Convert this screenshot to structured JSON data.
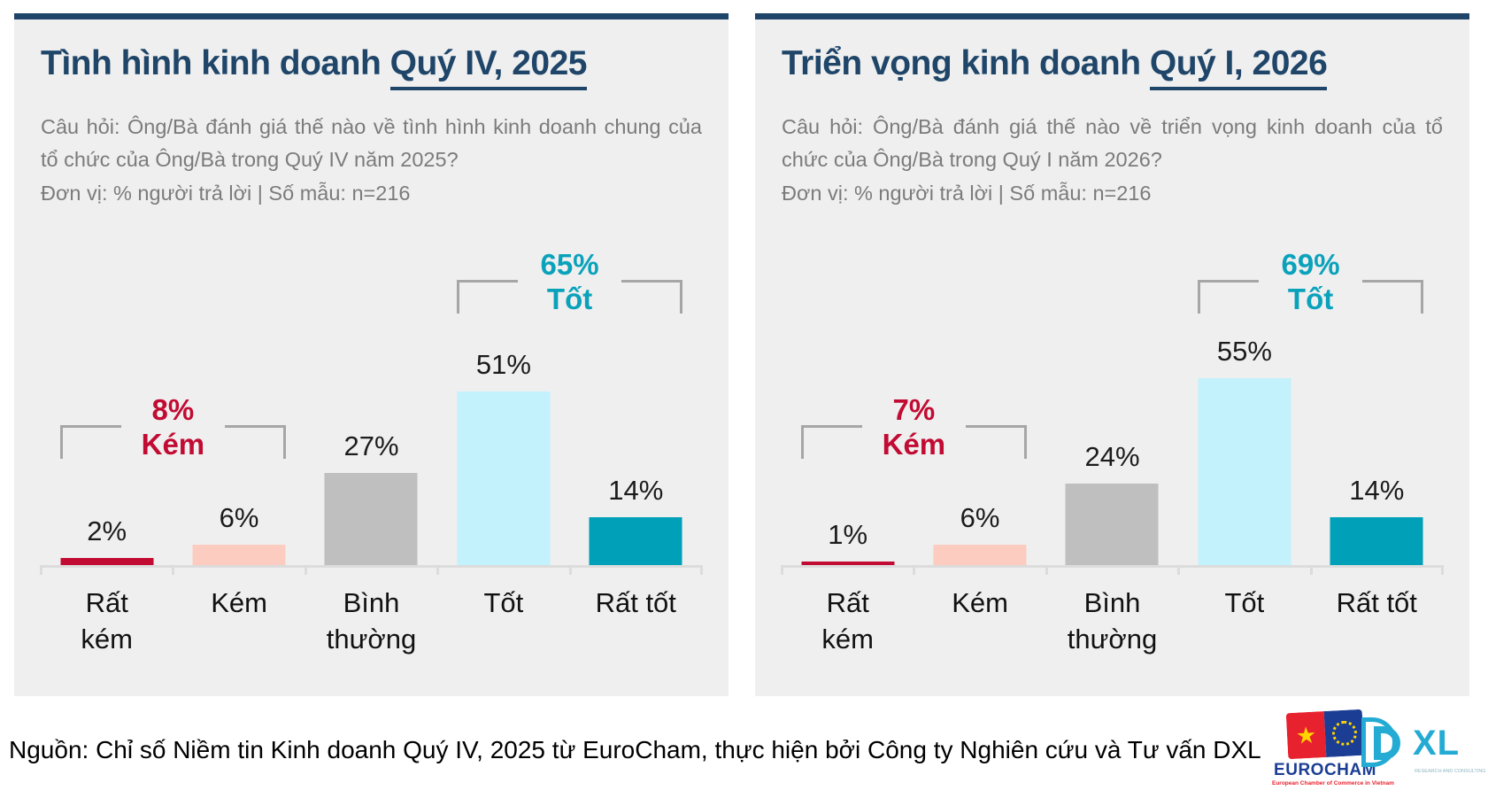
{
  "colors": {
    "navy": "#1f4569",
    "panel_bg": "#efefef",
    "question_gray": "#7b7b7b",
    "bracket_line": "#a6a6a6",
    "axis_line": "#dcdcdc",
    "crimson": "#c20b33",
    "salmon": "#fbccbf",
    "gray_bar": "#bfbfbf",
    "light_cyan": "#c3f2fc",
    "teal": "#00a0b8",
    "dxl_cyan": "#23abd4",
    "eurocham_blue": "#1b3e94",
    "eurocham_red": "#e8212e"
  },
  "panels": [
    {
      "title_plain": "Tình hình kinh doanh ",
      "title_underlined": "Quý IV, 2025",
      "question": "Câu hỏi: Ông/Bà đánh giá thế nào về tình hình kinh doanh chung của tổ chức của Ông/Bà trong Quý IV năm 2025?",
      "unit_line": "Đơn vị: % người trả lời | Số mẫu: n=216"
    },
    {
      "title_plain": "Triển vọng kinh doanh ",
      "title_underlined": "Quý I, 2026",
      "question": "Câu hỏi: Ông/Bà đánh giá thế nào về triển vọng kinh doanh của tổ chức của Ông/Bà trong Quý I năm 2026?",
      "unit_line": "Đơn vị: % người trả lời | Số mẫu: n=216"
    }
  ],
  "chart_data": [
    {
      "type": "bar",
      "title": "Tình hình kinh doanh Quý IV, 2025",
      "categories": [
        "Rất kém",
        "Kém",
        "Bình thường",
        "Tốt",
        "Rất tốt"
      ],
      "values": [
        2,
        6,
        27,
        51,
        14
      ],
      "value_labels": [
        "2%",
        "6%",
        "27%",
        "51%",
        "14%"
      ],
      "bar_colors": [
        "#c20b33",
        "#fbccbf",
        "#bfbfbf",
        "#c3f2fc",
        "#00a0b8"
      ],
      "unit": "% người trả lời",
      "sample": "n=216",
      "ylim": [
        0,
        60
      ],
      "grid": false,
      "legend": null,
      "annotations": [
        {
          "label": "8%",
          "name": "Kém",
          "color": "#c20b33",
          "from": 0,
          "to": 1
        },
        {
          "label": "65%",
          "name": "Tốt",
          "color": "#0aa2bb",
          "from": 3,
          "to": 4
        }
      ]
    },
    {
      "type": "bar",
      "title": "Triển vọng kinh doanh Quý I, 2026",
      "categories": [
        "Rất kém",
        "Kém",
        "Bình thường",
        "Tốt",
        "Rất tốt"
      ],
      "values": [
        1,
        6,
        24,
        55,
        14
      ],
      "value_labels": [
        "1%",
        "6%",
        "24%",
        "55%",
        "14%"
      ],
      "bar_colors": [
        "#c20b33",
        "#fbccbf",
        "#bfbfbf",
        "#c3f2fc",
        "#00a0b8"
      ],
      "unit": "% người trả lời",
      "sample": "n=216",
      "ylim": [
        0,
        60
      ],
      "grid": false,
      "legend": null,
      "annotations": [
        {
          "label": "7%",
          "name": "Kém",
          "color": "#c20b33",
          "from": 0,
          "to": 1
        },
        {
          "label": "69%",
          "name": "Tốt",
          "color": "#0aa2bb",
          "from": 3,
          "to": 4
        }
      ]
    }
  ],
  "footer": {
    "source": "Nguồn: Chỉ số Niềm tin Kinh doanh Quý IV, 2025 từ EuroCham, thực hiện bởi Công ty Nghiên cứu và Tư vấn DXL"
  },
  "logos": {
    "eurocham": {
      "name": "EUROCHAM",
      "tagline": "European Chamber of Commerce in Vietnam",
      "star": "★"
    },
    "dxl": {
      "name": "XL",
      "tagline": "RESEARCH AND CONSULTING"
    }
  }
}
